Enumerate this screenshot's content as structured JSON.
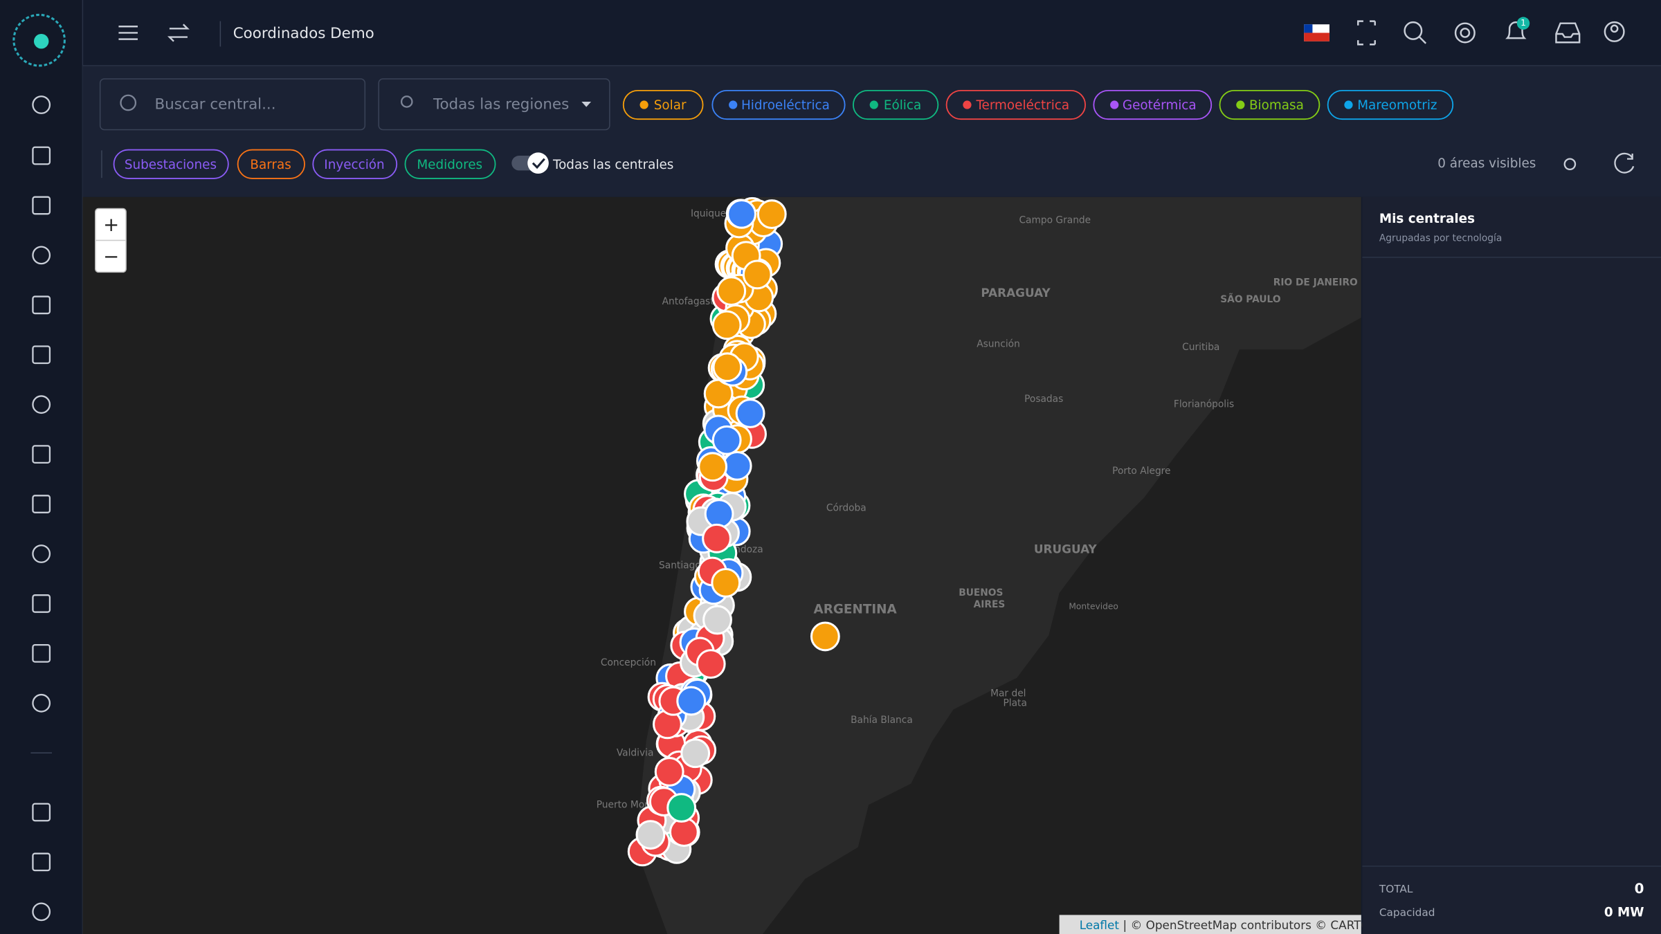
{
  "header": {
    "title": "Coordinados Demo",
    "notification_count": "1"
  },
  "filters": {
    "search_placeholder": "Buscar central...",
    "region_select": "Todas las regiones",
    "technologies": [
      "Solar",
      "Hidroeléctrica",
      "Eólica",
      "Termoeléctrica",
      "Geotérmica",
      "Biomasa",
      "Mareomotriz"
    ],
    "layers": [
      "Subestaciones",
      "Barras",
      "Inyección",
      "Medidores"
    ],
    "toggle_label": "Todas las centrales",
    "visible_areas": "0 áreas visibles"
  },
  "map": {
    "zoom_in": "+",
    "zoom_out": "−",
    "labels": [
      "Iquique",
      "Campo Grande",
      "PARAGUAY",
      "RIO DE JANEIRO",
      "SÃO PAULO",
      "Antofagasta",
      "Asunción",
      "Curitiba",
      "Posadas",
      "Florianópolis",
      "Porto Alegre",
      "Córdoba",
      "Mendoza",
      "URUGUAY",
      "Santiago",
      "BUENOS",
      "AIRES",
      "Montevideo",
      "ARGENTINA",
      "Concepción",
      "Mar del",
      "Plata",
      "Bahía Blanca",
      "Valdivia",
      "Puerto Montt"
    ],
    "attribution_link": "Leaflet",
    "attribution_text": "| © OpenStreetMap contributors © CARTO"
  },
  "panel": {
    "title": "Mis centrales",
    "subtitle": "Agrupadas por tecnología",
    "total_label": "TOTAL",
    "total_value": "0",
    "capacity_label": "Capacidad",
    "capacity_value": "0 MW"
  }
}
